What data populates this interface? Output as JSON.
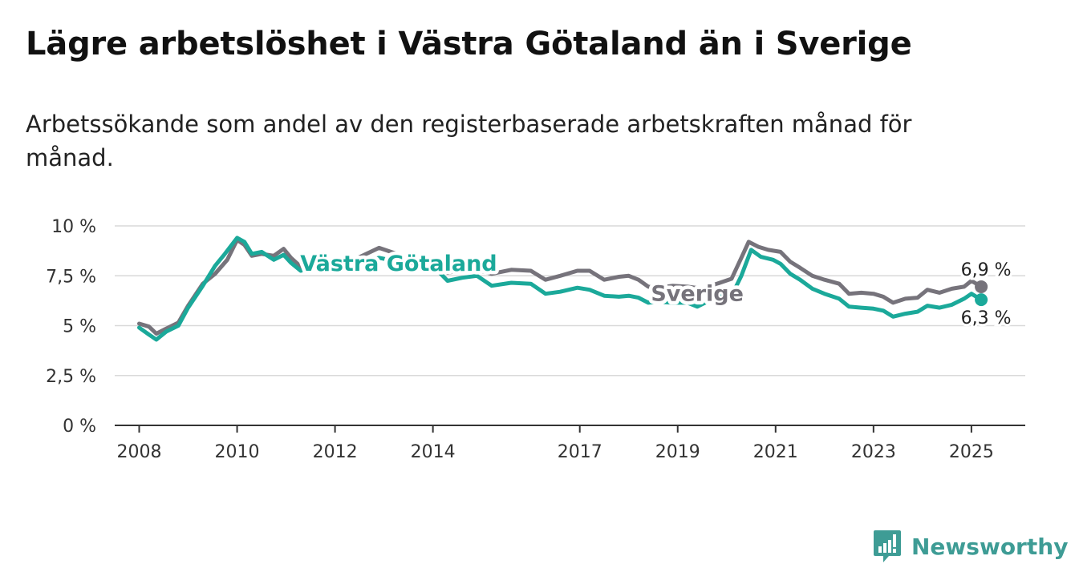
{
  "header": {
    "title": "Lägre arbetslöshet i Västra Götaland än i Sverige",
    "subtitle": "Arbetssökande som andel av den registerbaserade arbetskraften månad för månad."
  },
  "brand": {
    "name": "Newsworthy",
    "icon": "bar-chart-icon",
    "color": "#3e9c95"
  },
  "chart_data": {
    "type": "line",
    "ylim": [
      0,
      10
    ],
    "xlim": [
      2007.5,
      2026.1
    ],
    "y_ticks": [
      {
        "value": 0,
        "label": "0 %"
      },
      {
        "value": 2.5,
        "label": "2,5 %"
      },
      {
        "value": 5,
        "label": "5 %"
      },
      {
        "value": 7.5,
        "label": "7,5 %"
      },
      {
        "value": 10,
        "label": "10 %"
      }
    ],
    "x_ticks": [
      {
        "value": 2008,
        "label": "2008"
      },
      {
        "value": 2010,
        "label": "2010"
      },
      {
        "value": 2012,
        "label": "2012"
      },
      {
        "value": 2014,
        "label": "2014"
      },
      {
        "value": 2017,
        "label": "2017"
      },
      {
        "value": 2019,
        "label": "2019"
      },
      {
        "value": 2021,
        "label": "2021"
      },
      {
        "value": 2023,
        "label": "2023"
      },
      {
        "value": 2025,
        "label": "2025"
      }
    ],
    "grid": true,
    "series": [
      {
        "name": "Sverige",
        "color": "#76737b",
        "end_label": "6,9 %",
        "points": [
          [
            2008.0,
            5.1
          ],
          [
            2008.2,
            4.95
          ],
          [
            2008.35,
            4.6
          ],
          [
            2008.55,
            4.85
          ],
          [
            2008.8,
            5.15
          ],
          [
            2009.0,
            6.0
          ],
          [
            2009.3,
            7.1
          ],
          [
            2009.55,
            7.6
          ],
          [
            2009.8,
            8.3
          ],
          [
            2010.0,
            9.3
          ],
          [
            2010.15,
            9.05
          ],
          [
            2010.3,
            8.5
          ],
          [
            2010.5,
            8.6
          ],
          [
            2010.75,
            8.5
          ],
          [
            2010.95,
            8.85
          ],
          [
            2011.1,
            8.4
          ],
          [
            2011.3,
            7.95
          ],
          [
            2011.55,
            8.15
          ],
          [
            2011.8,
            8.1
          ],
          [
            2012.3,
            8.2
          ],
          [
            2012.9,
            8.9
          ],
          [
            2013.5,
            8.4
          ],
          [
            2014.1,
            8.05
          ],
          [
            2014.3,
            7.65
          ],
          [
            2014.6,
            7.8
          ],
          [
            2014.9,
            7.8
          ],
          [
            2015.2,
            7.6
          ],
          [
            2015.6,
            7.8
          ],
          [
            2016.0,
            7.75
          ],
          [
            2016.3,
            7.3
          ],
          [
            2016.6,
            7.5
          ],
          [
            2016.95,
            7.75
          ],
          [
            2017.2,
            7.75
          ],
          [
            2017.5,
            7.3
          ],
          [
            2017.8,
            7.45
          ],
          [
            2018.0,
            7.5
          ],
          [
            2018.2,
            7.3
          ],
          [
            2018.4,
            6.95
          ],
          [
            2018.6,
            6.9
          ],
          [
            2018.9,
            7.0
          ],
          [
            2019.2,
            6.95
          ],
          [
            2019.5,
            6.85
          ],
          [
            2019.8,
            7.1
          ],
          [
            2020.1,
            7.35
          ],
          [
            2020.3,
            8.4
          ],
          [
            2020.45,
            9.2
          ],
          [
            2020.65,
            8.95
          ],
          [
            2020.85,
            8.8
          ],
          [
            2021.1,
            8.7
          ],
          [
            2021.3,
            8.2
          ],
          [
            2021.5,
            7.9
          ],
          [
            2021.75,
            7.5
          ],
          [
            2022.0,
            7.3
          ],
          [
            2022.3,
            7.1
          ],
          [
            2022.5,
            6.6
          ],
          [
            2022.75,
            6.65
          ],
          [
            2023.0,
            6.6
          ],
          [
            2023.2,
            6.45
          ],
          [
            2023.4,
            6.15
          ],
          [
            2023.65,
            6.35
          ],
          [
            2023.9,
            6.4
          ],
          [
            2024.1,
            6.8
          ],
          [
            2024.35,
            6.65
          ],
          [
            2024.6,
            6.85
          ],
          [
            2024.85,
            6.95
          ],
          [
            2025.0,
            7.25
          ],
          [
            2025.2,
            6.95
          ]
        ]
      },
      {
        "name": "Västra Götaland",
        "color": "#1ba99a",
        "end_label": "6,3 %",
        "points": [
          [
            2008.0,
            4.9
          ],
          [
            2008.2,
            4.55
          ],
          [
            2008.35,
            4.3
          ],
          [
            2008.55,
            4.7
          ],
          [
            2008.8,
            5.0
          ],
          [
            2009.0,
            5.9
          ],
          [
            2009.3,
            7.0
          ],
          [
            2009.55,
            8.0
          ],
          [
            2009.75,
            8.6
          ],
          [
            2010.0,
            9.4
          ],
          [
            2010.15,
            9.2
          ],
          [
            2010.3,
            8.6
          ],
          [
            2010.5,
            8.7
          ],
          [
            2010.75,
            8.3
          ],
          [
            2010.95,
            8.55
          ],
          [
            2011.1,
            8.15
          ],
          [
            2011.3,
            7.75
          ],
          [
            2011.55,
            7.95
          ],
          [
            2011.8,
            7.9
          ],
          [
            2012.3,
            8.0
          ],
          [
            2012.9,
            8.4
          ],
          [
            2013.5,
            8.1
          ],
          [
            2014.1,
            7.75
          ],
          [
            2014.3,
            7.25
          ],
          [
            2014.6,
            7.4
          ],
          [
            2014.9,
            7.5
          ],
          [
            2015.2,
            7.0
          ],
          [
            2015.6,
            7.15
          ],
          [
            2016.0,
            7.1
          ],
          [
            2016.3,
            6.6
          ],
          [
            2016.6,
            6.7
          ],
          [
            2016.95,
            6.9
          ],
          [
            2017.2,
            6.8
          ],
          [
            2017.5,
            6.5
          ],
          [
            2017.8,
            6.45
          ],
          [
            2018.0,
            6.5
          ],
          [
            2018.2,
            6.4
          ],
          [
            2018.4,
            6.15
          ],
          [
            2018.6,
            6.2
          ],
          [
            2018.9,
            6.15
          ],
          [
            2019.2,
            6.15
          ],
          [
            2019.4,
            5.95
          ],
          [
            2019.6,
            6.2
          ],
          [
            2019.85,
            6.45
          ],
          [
            2020.1,
            6.5
          ],
          [
            2020.3,
            7.5
          ],
          [
            2020.5,
            8.8
          ],
          [
            2020.7,
            8.45
          ],
          [
            2020.95,
            8.3
          ],
          [
            2021.1,
            8.1
          ],
          [
            2021.3,
            7.6
          ],
          [
            2021.5,
            7.3
          ],
          [
            2021.75,
            6.85
          ],
          [
            2022.0,
            6.6
          ],
          [
            2022.3,
            6.35
          ],
          [
            2022.5,
            5.95
          ],
          [
            2022.75,
            5.9
          ],
          [
            2023.0,
            5.85
          ],
          [
            2023.2,
            5.75
          ],
          [
            2023.4,
            5.45
          ],
          [
            2023.65,
            5.6
          ],
          [
            2023.9,
            5.7
          ],
          [
            2024.1,
            6.0
          ],
          [
            2024.35,
            5.9
          ],
          [
            2024.6,
            6.05
          ],
          [
            2024.85,
            6.35
          ],
          [
            2025.0,
            6.6
          ],
          [
            2025.2,
            6.3
          ]
        ]
      }
    ]
  }
}
